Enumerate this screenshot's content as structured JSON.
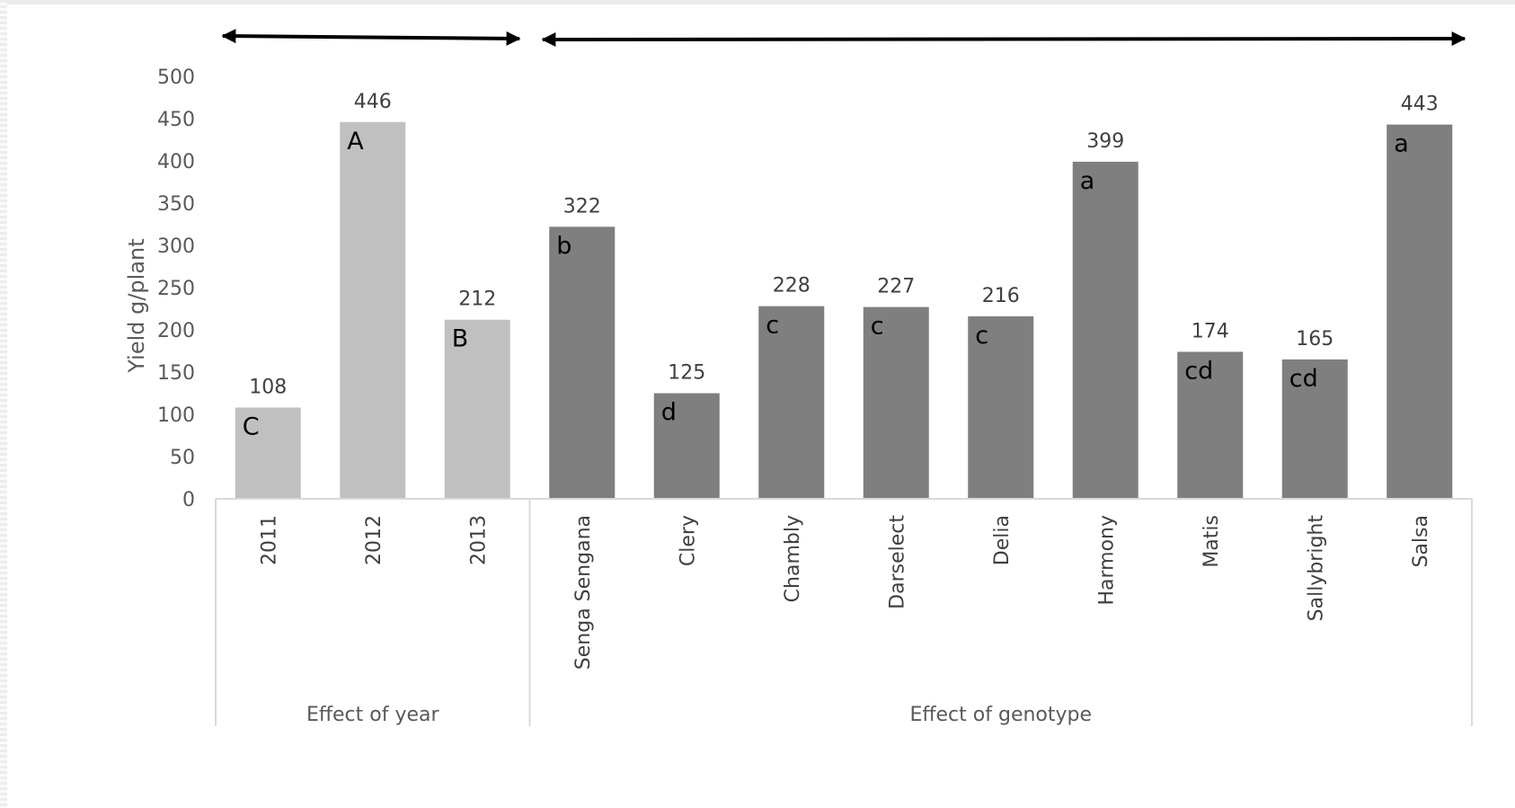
{
  "chart_data": {
    "type": "bar",
    "ylabel": "Yield g/plant",
    "ylim": [
      0,
      500
    ],
    "yticks": [
      "0",
      "50",
      "100",
      "150",
      "200",
      "250",
      "300",
      "350",
      "400",
      "450",
      "500"
    ],
    "grid": false,
    "groups": [
      {
        "label": "Effect of year",
        "color": "#c0c0c0",
        "categories": [
          "2011",
          "2012",
          "2013"
        ],
        "values": [
          108,
          446,
          212
        ],
        "data_labels": [
          "108",
          "446",
          "212"
        ],
        "letters": [
          "C",
          "A",
          "B"
        ]
      },
      {
        "label": "Effect of genotype",
        "color": "#7f7f7f",
        "categories": [
          "Senga Sengana",
          "Clery",
          "Chambly",
          "Darselect",
          "Delia",
          "Harmony",
          "Matis",
          "Sallybright",
          "Salsa"
        ],
        "values": [
          322,
          125,
          228,
          227,
          216,
          399,
          174,
          165,
          443
        ],
        "data_labels": [
          "322",
          "125",
          "228",
          "227",
          "216",
          "399",
          "174",
          "165",
          "443"
        ],
        "letters": [
          "b",
          "d",
          "c",
          "c",
          "c",
          "a",
          "cd",
          "cd",
          "a"
        ]
      }
    ]
  }
}
